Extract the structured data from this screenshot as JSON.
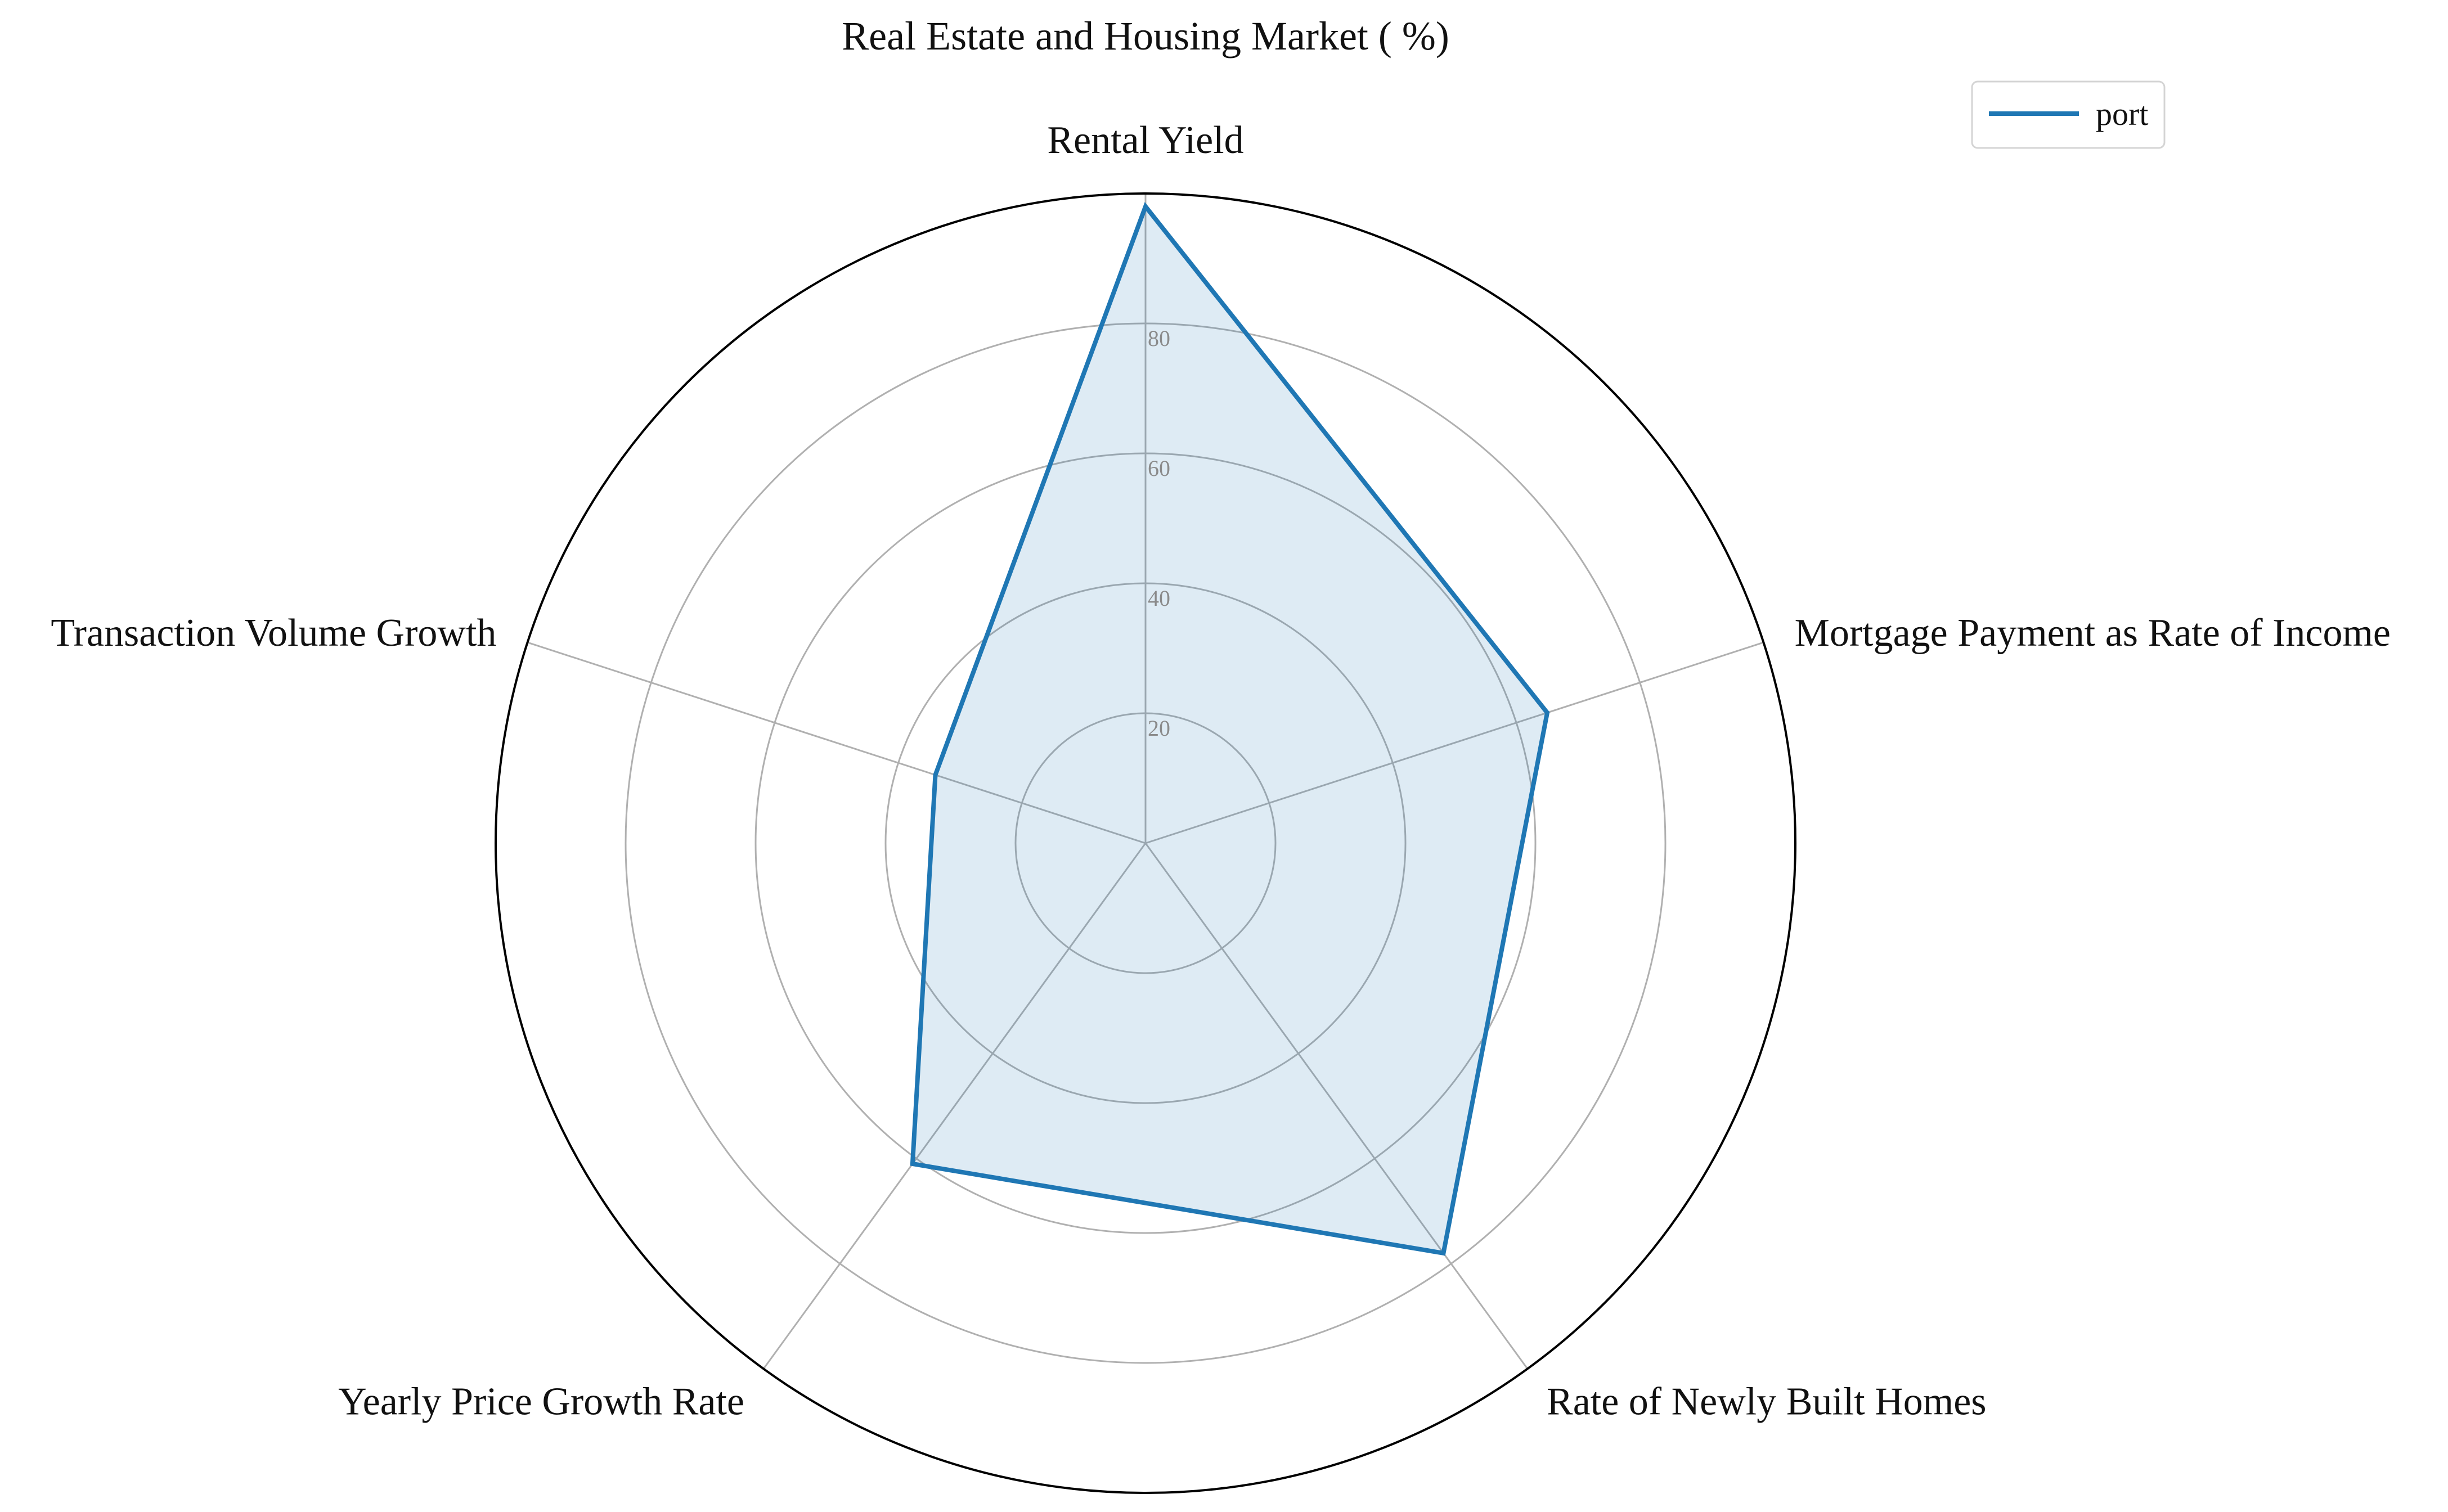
{
  "chart_data": {
    "type": "radar",
    "title": "Real Estate and Housing Market ( %)",
    "categories": [
      "Rental Yield",
      "Mortgage Payment as Rate of Income",
      "Rate of Newly Built Homes",
      "Yearly Price Growth Rate",
      "Transaction Volume Growth"
    ],
    "series": [
      {
        "name": "port",
        "values": [
          98,
          65,
          78,
          61,
          34
        ]
      }
    ],
    "rlim": [
      0,
      100
    ],
    "rticks": [
      20,
      40,
      60,
      80
    ],
    "rtick_labels": [
      "20",
      "40",
      "60",
      "80"
    ],
    "grid": true,
    "legend_position": "top-right",
    "colors": {
      "line": "#1f77b4",
      "fill": "#1f77b4",
      "grid": "#b0b0b0",
      "outer": "#000000"
    }
  }
}
